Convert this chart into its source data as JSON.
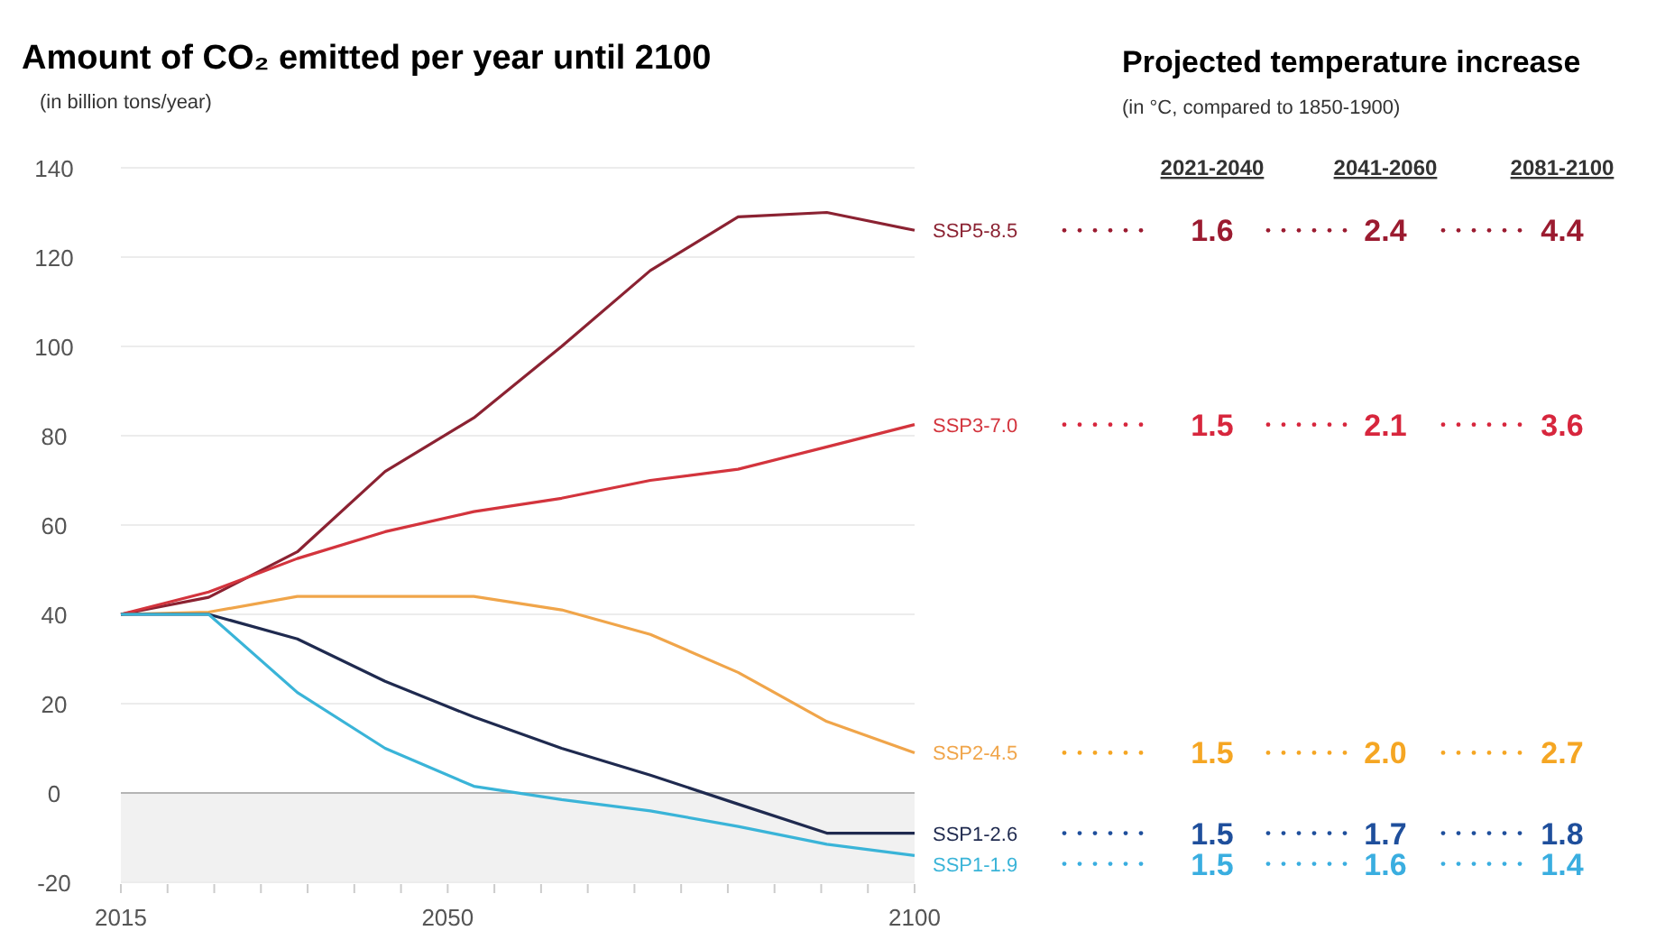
{
  "chart_data": [
    {
      "type": "line",
      "title": "Amount of CO₂ emitted per year until 2100",
      "subtitle": "(in billion tons/year)",
      "x": [
        2015,
        2024.4,
        2033.9,
        2043.3,
        2052.8,
        2062.2,
        2071.7,
        2081.1,
        2090.6,
        2100
      ],
      "xlim": [
        2015,
        2100
      ],
      "xticks": [
        2015,
        {
          "value": 2020,
          "label": null
        },
        {
          "value": 2025,
          "label": null
        },
        {
          "value": 2030,
          "label": null
        },
        {
          "value": 2035,
          "label": null
        },
        {
          "value": 2040,
          "label": null
        },
        {
          "value": 2045,
          "label": null
        },
        2050,
        {
          "value": 2055,
          "label": null
        },
        {
          "value": 2060,
          "label": null
        },
        {
          "value": 2065,
          "label": null
        },
        {
          "value": 2070,
          "label": null
        },
        {
          "value": 2075,
          "label": null
        },
        {
          "value": 2080,
          "label": null
        },
        {
          "value": 2085,
          "label": null
        },
        {
          "value": 2090,
          "label": null
        },
        {
          "value": 2095,
          "label": null
        },
        2100
      ],
      "ylim": [
        -20,
        140
      ],
      "yticks": [
        -20,
        0,
        20,
        40,
        60,
        80,
        100,
        120,
        140
      ],
      "grid": "y",
      "bands": [
        {
          "axis": "y",
          "from": 0,
          "to": -20,
          "color": "#f1f1f1"
        }
      ],
      "ref_lines": [
        {
          "axis": "y",
          "value": 0,
          "color": "#b4b4b4"
        }
      ],
      "series": [
        {
          "name": "SSP5-8.5",
          "color": "#8b2232",
          "values": [
            40,
            43.8,
            54,
            72,
            84,
            100,
            117,
            129,
            130,
            126
          ]
        },
        {
          "name": "SSP3-7.0",
          "color": "#d3343d",
          "values": [
            40,
            45,
            52.5,
            58.5,
            63,
            66,
            70,
            72.5,
            77.5,
            82.5
          ]
        },
        {
          "name": "SSP2-4.5",
          "color": "#f0a54a",
          "values": [
            40,
            40.5,
            44,
            44,
            44,
            41,
            35.5,
            27,
            16,
            9
          ]
        },
        {
          "name": "SSP1-2.6",
          "color": "#1f2a4f",
          "values": [
            40,
            40,
            34.5,
            25,
            17,
            10,
            4,
            -2.5,
            -9,
            -9
          ]
        },
        {
          "name": "SSP1-1.9",
          "color": "#3ab4d8",
          "values": [
            40,
            40,
            22.5,
            10,
            1.5,
            -1.5,
            -4,
            -7.5,
            -11.5,
            -14
          ]
        }
      ]
    },
    {
      "type": "other",
      "title": "Projected temperature increase",
      "subtitle": "(in °C, compared to 1850-1900)",
      "categories": [
        "2021-2040",
        "2041-2060",
        "2081-2100"
      ],
      "cells": [
        [
          "1.6",
          "2.4",
          "4.4"
        ],
        [
          "1.5",
          "2.1",
          "3.6"
        ],
        [
          "1.5",
          "2.0",
          "2.7"
        ],
        [
          "1.5",
          "1.7",
          "1.8"
        ],
        [
          "1.5",
          "1.6",
          "1.4"
        ]
      ],
      "colors": [
        "#9b1b30",
        "#d7263d",
        "#f5a623",
        "#1f4f9c",
        "#3aaee0"
      ]
    }
  ]
}
